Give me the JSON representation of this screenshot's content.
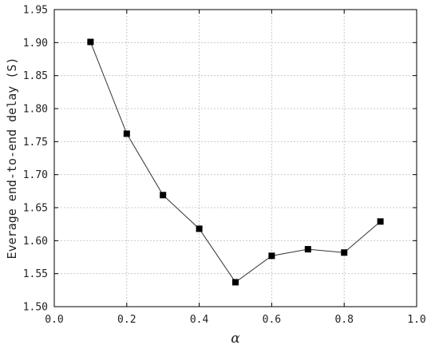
{
  "chart_data": {
    "type": "line",
    "x": [
      0.1,
      0.2,
      0.3,
      0.4,
      0.5,
      0.6,
      0.7,
      0.8,
      0.9
    ],
    "series": [
      {
        "values": [
          1.901,
          1.762,
          1.669,
          1.618,
          1.537,
          1.577,
          1.587,
          1.582,
          1.629
        ]
      }
    ],
    "xlabel": "α",
    "ylabel": "Everage end-to-end delay (S)",
    "xlim": [
      0.0,
      1.0
    ],
    "ylim": [
      1.5,
      1.95
    ],
    "xticks": [
      "0.0",
      "0.2",
      "0.4",
      "0.6",
      "0.8",
      "1.0"
    ],
    "yticks": [
      "1.50",
      "1.55",
      "1.60",
      "1.65",
      "1.70",
      "1.75",
      "1.80",
      "1.85",
      "1.90",
      "1.95"
    ],
    "grid": true,
    "marker": "square",
    "line_color": "#333333",
    "marker_color": "#000000"
  }
}
